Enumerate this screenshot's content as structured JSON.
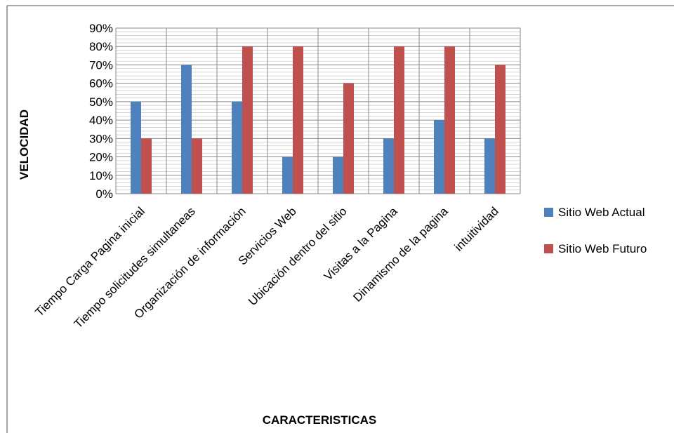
{
  "chart_data": {
    "type": "bar",
    "title": "",
    "xlabel": "CARACTERISTICAS",
    "ylabel": "VELOCIDAD",
    "ylim": [
      0,
      90
    ],
    "y_ticks": [
      "0%",
      "10%",
      "20%",
      "30%",
      "40%",
      "50%",
      "60%",
      "70%",
      "80%",
      "90%"
    ],
    "grid": true,
    "legend_position": "right",
    "categories": [
      "Tiempo Carga Pagina inicial",
      "Tiempo solicitudes simultaneas",
      "Organización de información",
      "Servicios Web",
      "Ubicación  dentro del sitio",
      "Visitas a la Pagina",
      "Dinamismo de la pagina",
      "intuitividad"
    ],
    "series": [
      {
        "name": "Sitio Web Actual",
        "color": "#4f81bd",
        "values": [
          50,
          70,
          50,
          20,
          20,
          30,
          40,
          30
        ]
      },
      {
        "name": "Sitio Web Futuro",
        "color": "#c0504d",
        "values": [
          30,
          30,
          80,
          80,
          60,
          80,
          80,
          70
        ]
      }
    ]
  }
}
